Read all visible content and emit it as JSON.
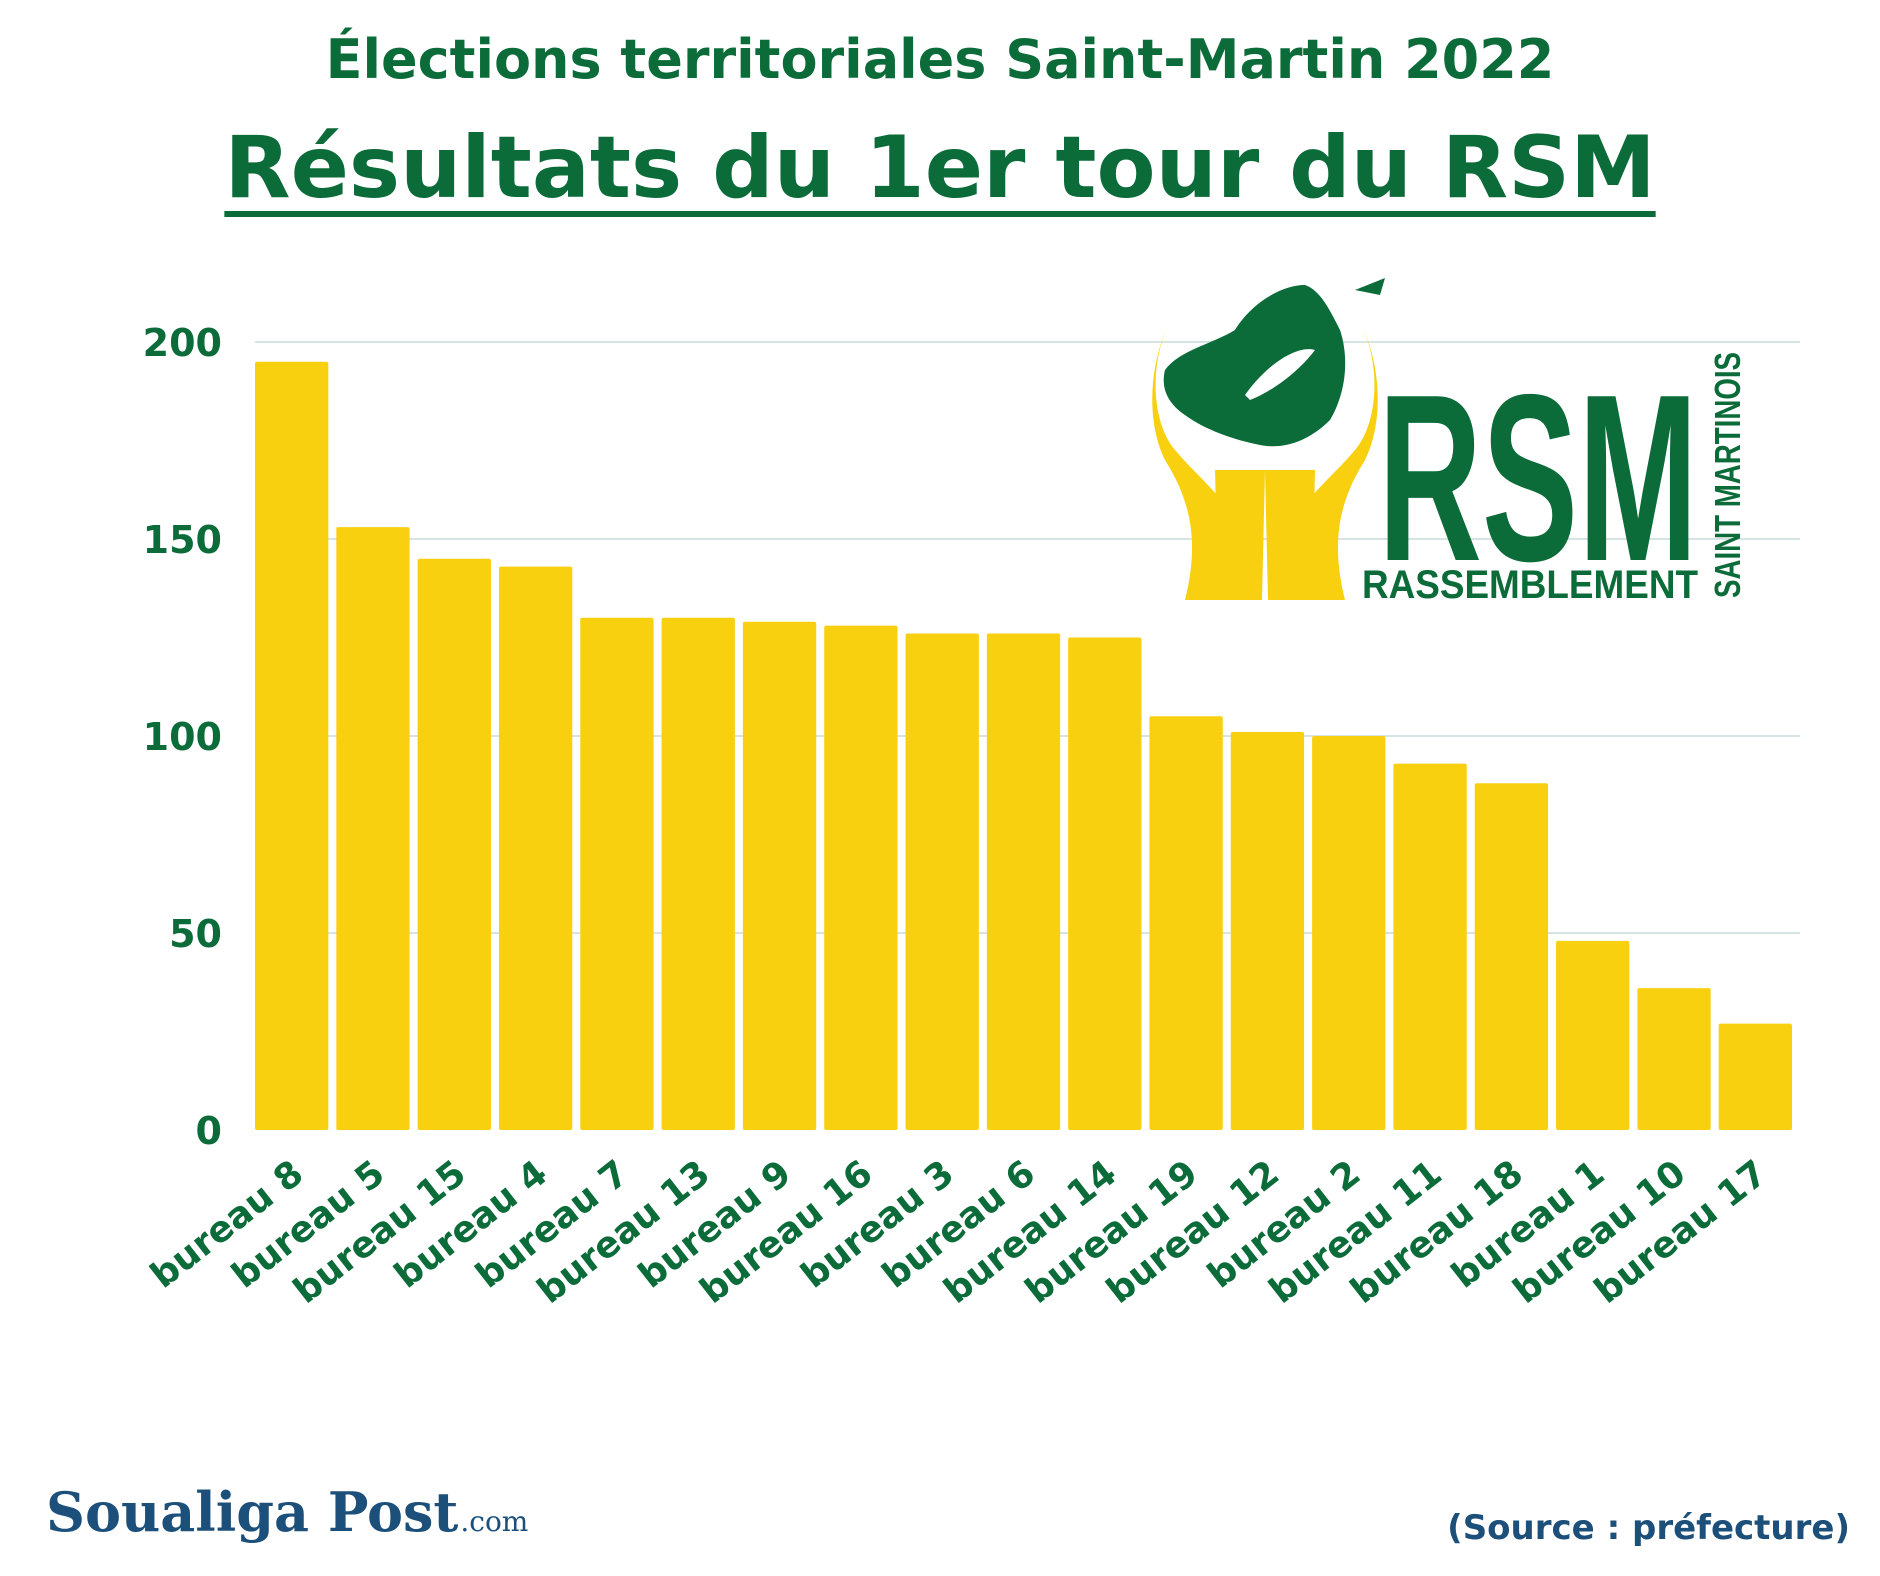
{
  "chart_data": {
    "type": "bar",
    "title": "Élections territoriales Saint-Martin 2022",
    "subtitle": "Résultats du 1er tour du RSM",
    "categories": [
      "bureau 8",
      "bureau 5",
      "bureau 15",
      "bureau 4",
      "bureau 7",
      "bureau 13",
      "bureau 9",
      "bureau 16",
      "bureau 3",
      "bureau 6",
      "bureau 14",
      "bureau 19",
      "bureau 12",
      "bureau 2",
      "bureau 11",
      "bureau 18",
      "bureau 1",
      "bureau 10",
      "bureau 17"
    ],
    "values": [
      195,
      153,
      145,
      143,
      130,
      130,
      129,
      128,
      126,
      126,
      125,
      105,
      101,
      100,
      93,
      88,
      48,
      36,
      27
    ],
    "ylim": [
      0,
      200
    ],
    "yticks": [
      0,
      50,
      100,
      150,
      200
    ],
    "grid": true,
    "bar_color": "#f9d010",
    "text_color": "#0b6b39",
    "grid_color": "#d6e4e4"
  },
  "logo": {
    "letters": "RSM",
    "line1": "RASSEMBLEMENT",
    "line2": "SAINT MARTINOIS",
    "green": "#0b6b39",
    "yellow": "#f9d010"
  },
  "footer": {
    "brand": "Soualiga Post",
    "brand_suffix": ".com",
    "source": "(Source : préfecture)"
  }
}
